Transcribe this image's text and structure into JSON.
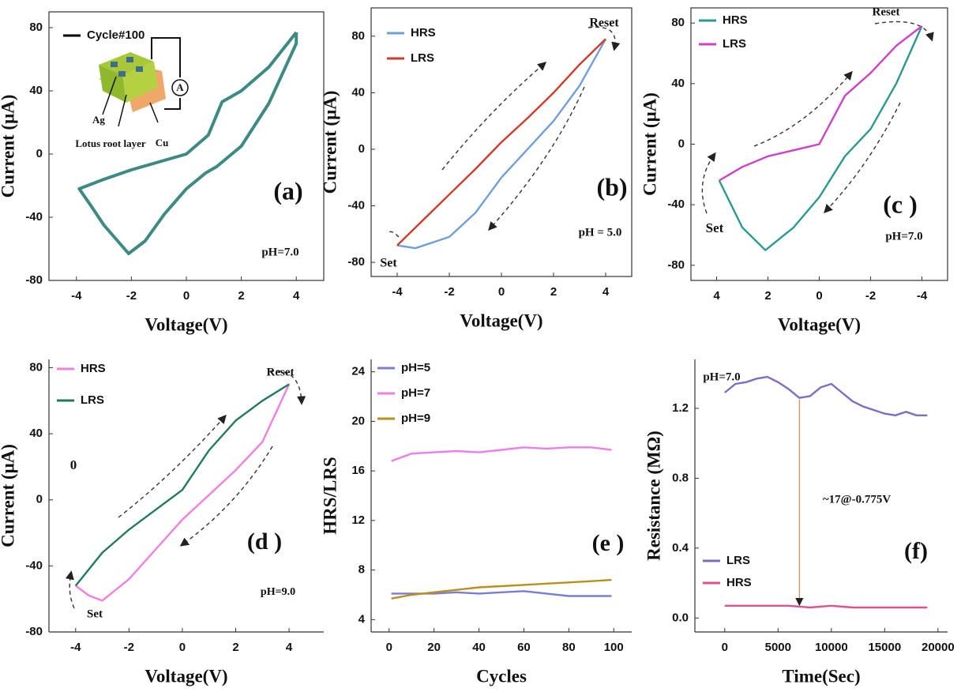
{
  "chart_data": [
    {
      "type": "line",
      "panel_label": "(a)",
      "xlabel": "Voltage(V)",
      "ylabel": "Current (μA)",
      "xlim": [
        -5,
        5
      ],
      "ylim": [
        -80,
        90
      ],
      "xticks": [
        -4,
        -2,
        0,
        2,
        4
      ],
      "yticks": [
        -80,
        -40,
        0,
        40,
        80
      ],
      "legend_color": "#000000",
      "series": [
        {
          "name": "Cycle#100",
          "color": "#3b8a84",
          "x": [
            4,
            3,
            2,
            1.3,
            0.8,
            0,
            -1,
            -2,
            -3,
            -3.9,
            -3.5,
            -3,
            -2.1,
            -1.5,
            -0.8,
            0,
            0.7,
            1.1,
            2,
            3,
            4,
            4
          ],
          "values": [
            77,
            55,
            40,
            33,
            12,
            0,
            -5,
            -10,
            -16,
            -22,
            -32,
            -45,
            -63,
            -55,
            -38,
            -22,
            -12,
            -8,
            5,
            32,
            70,
            77
          ]
        }
      ],
      "annotations": [
        "pH=7.0"
      ],
      "inset_labels": [
        "Ag",
        "Lotus root layer",
        "Cu",
        "A"
      ]
    },
    {
      "type": "line",
      "panel_label": "(b)",
      "xlabel": "Voltage(V)",
      "ylabel": "Current (μA)",
      "xlim": [
        -5,
        5
      ],
      "ylim": [
        -90,
        100
      ],
      "xticks": [
        -4,
        -2,
        0,
        2,
        4
      ],
      "yticks": [
        -80,
        -40,
        0,
        40,
        80
      ],
      "series": [
        {
          "name": "HRS",
          "color": "#6f9fd8",
          "x": [
            -4,
            -3.3,
            -2,
            -1,
            0,
            1,
            2,
            3,
            4
          ],
          "values": [
            -68,
            -70,
            -62,
            -45,
            -20,
            0,
            20,
            45,
            78
          ]
        },
        {
          "name": "LRS",
          "color": "#d23a2a",
          "x": [
            -4,
            -3,
            -2,
            -1,
            0,
            1,
            2,
            3,
            4
          ],
          "values": [
            -68,
            -50,
            -32,
            -14,
            5,
            22,
            40,
            60,
            78
          ]
        }
      ],
      "annotations": [
        "pH = 5.0",
        "Reset",
        "Set"
      ]
    },
    {
      "type": "line",
      "panel_label": "(c )",
      "xlabel": "Voltage(V)",
      "ylabel": "Current (μA)",
      "xlim": [
        5,
        -5
      ],
      "ylim": [
        -90,
        90
      ],
      "xticks": [
        4,
        2,
        0,
        -2,
        -4
      ],
      "yticks": [
        -80,
        -40,
        0,
        40,
        80
      ],
      "series": [
        {
          "name": "HRS",
          "color": "#2a9a90",
          "x": [
            3.9,
            3,
            2.1,
            1,
            0,
            -1,
            -2,
            -3,
            -4
          ],
          "values": [
            -24,
            -55,
            -70,
            -55,
            -35,
            -8,
            10,
            40,
            78
          ]
        },
        {
          "name": "LRS",
          "color": "#cf3fc8",
          "x": [
            3.9,
            3,
            2,
            1,
            0,
            -1,
            -2,
            -3,
            -4
          ],
          "values": [
            -24,
            -15,
            -8,
            -4,
            0,
            32,
            47,
            65,
            78
          ]
        }
      ],
      "annotations": [
        "pH=7.0",
        "Reset",
        "Set"
      ]
    },
    {
      "type": "line",
      "panel_label": "(d )",
      "xlabel": "Voltage(V)",
      "ylabel": "Current (μA)",
      "xlim": [
        -5,
        5.3
      ],
      "ylim": [
        -80,
        85
      ],
      "xticks": [
        -4,
        -2,
        0,
        2,
        4
      ],
      "yticks": [
        -80,
        -40,
        0,
        40,
        80
      ],
      "series": [
        {
          "name": "HRS",
          "color": "#f07fe0",
          "x": [
            -4,
            -3.5,
            -3,
            -2,
            -1,
            0,
            1,
            2,
            3,
            4
          ],
          "values": [
            -52,
            -58,
            -61,
            -48,
            -30,
            -12,
            3,
            18,
            35,
            70
          ]
        },
        {
          "name": "LRS",
          "color": "#217a5e",
          "x": [
            -4,
            -3,
            -2,
            -1,
            0,
            1,
            2,
            3,
            4
          ],
          "values": [
            -52,
            -32,
            -18,
            -6,
            6,
            30,
            48,
            60,
            70
          ]
        }
      ],
      "annotations": [
        "pH=9.0",
        "Reset",
        "Set",
        "0"
      ]
    },
    {
      "type": "line",
      "panel_label": "(e )",
      "xlabel": "Cycles",
      "ylabel": "HRS/LRS",
      "xlim": [
        -8,
        108
      ],
      "ylim": [
        3,
        25
      ],
      "xticks": [
        0,
        20,
        40,
        60,
        80,
        100
      ],
      "yticks": [
        4,
        8,
        12,
        16,
        20,
        24
      ],
      "series": [
        {
          "name": "pH=5",
          "color": "#7b7bd8",
          "x": [
            1,
            10,
            20,
            30,
            40,
            50,
            60,
            70,
            80,
            90,
            99
          ],
          "values": [
            6.1,
            6.1,
            6.1,
            6.2,
            6.1,
            6.2,
            6.3,
            6.1,
            5.9,
            5.9,
            5.9
          ]
        },
        {
          "name": "pH=7",
          "color": "#f07ce8",
          "x": [
            1,
            10,
            20,
            30,
            40,
            50,
            60,
            70,
            80,
            90,
            99
          ],
          "values": [
            16.8,
            17.4,
            17.5,
            17.6,
            17.5,
            17.7,
            17.9,
            17.8,
            17.9,
            17.9,
            17.7
          ]
        },
        {
          "name": "pH=9",
          "color": "#b8901a",
          "x": [
            1,
            10,
            20,
            30,
            40,
            50,
            60,
            70,
            80,
            90,
            99
          ],
          "values": [
            5.7,
            6.0,
            6.2,
            6.4,
            6.6,
            6.7,
            6.8,
            6.9,
            7.0,
            7.1,
            7.2
          ]
        }
      ],
      "annotations": []
    },
    {
      "type": "line",
      "panel_label": "(f)",
      "xlabel": "Time(Sec)",
      "ylabel": "Resistance (MΩ)",
      "xlim": [
        -2800,
        20900
      ],
      "ylim": [
        -0.08,
        1.48
      ],
      "xticks": [
        0,
        5000,
        10000,
        15000,
        20000
      ],
      "yticks": [
        {
          "value": 0,
          "label": "0.0"
        },
        0.4,
        0.8,
        1.2
      ],
      "series": [
        {
          "name": "LRS",
          "color": "#7f6cc4",
          "x": [
            0,
            1000,
            2000,
            3000,
            4000,
            5000,
            6000,
            7000,
            8000,
            9000,
            10000,
            11000,
            12000,
            13000,
            14000,
            15000,
            16000,
            17000,
            18000,
            19000
          ],
          "values": [
            1.29,
            1.34,
            1.35,
            1.37,
            1.38,
            1.35,
            1.31,
            1.26,
            1.27,
            1.32,
            1.34,
            1.29,
            1.24,
            1.21,
            1.19,
            1.17,
            1.16,
            1.18,
            1.16,
            1.16
          ]
        },
        {
          "name": "HRS",
          "color": "#e0508c",
          "x": [
            0,
            2000,
            4000,
            6000,
            8000,
            10000,
            12000,
            14000,
            16000,
            19000
          ],
          "values": [
            0.07,
            0.07,
            0.07,
            0.07,
            0.06,
            0.07,
            0.06,
            0.06,
            0.06,
            0.06
          ]
        }
      ],
      "annotations": [
        "pH=7.0",
        "~17@-0.775V"
      ]
    }
  ]
}
